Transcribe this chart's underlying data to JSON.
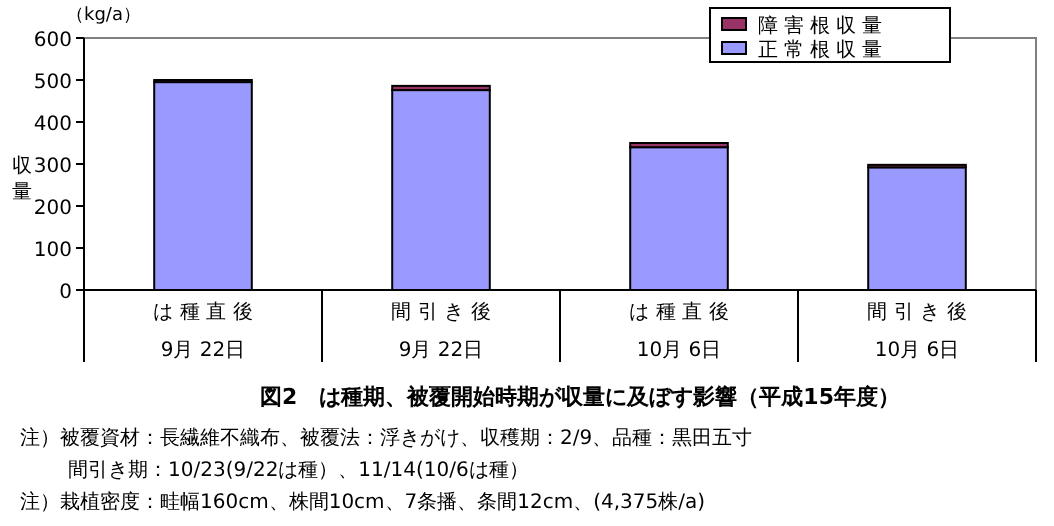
{
  "chart_data": {
    "type": "bar",
    "stacked": true,
    "title": "図2　は種期、被覆開始時期が収量に及ぼす影響（平成15年度）",
    "ylabel": "収量",
    "categories": [
      "は 種 直 後\n9月 22日",
      "間 引 き 後\n9月 22日",
      "は 種 直 後\n10月 6日",
      "間 引 き 後\n10月 6日"
    ],
    "series": [
      {
        "name": "正常根収量",
        "color": "#9999ff",
        "values": [
          495,
          476,
          340,
          292
        ]
      },
      {
        "name": "障害根収量",
        "color": "#993366",
        "values": [
          5,
          10,
          10,
          6
        ]
      }
    ],
    "ylim": [
      0,
      600
    ],
    "yticks": [
      0,
      100,
      200,
      300,
      400,
      500,
      600
    ],
    "legend": "top right",
    "annotations": [
      "（kg/a）",
      "注）被覆資材：長繊維不織布、被覆法：浮きがけ、収穫期：2/9、品種：黒田五寸",
      "間引き期：10/23(9/22は種）、11/14(10/6は種）",
      "注）栽植密度：畦幅160cm、株間10cm、7条播、条間12cm、(4,375株/a)"
    ]
  }
}
